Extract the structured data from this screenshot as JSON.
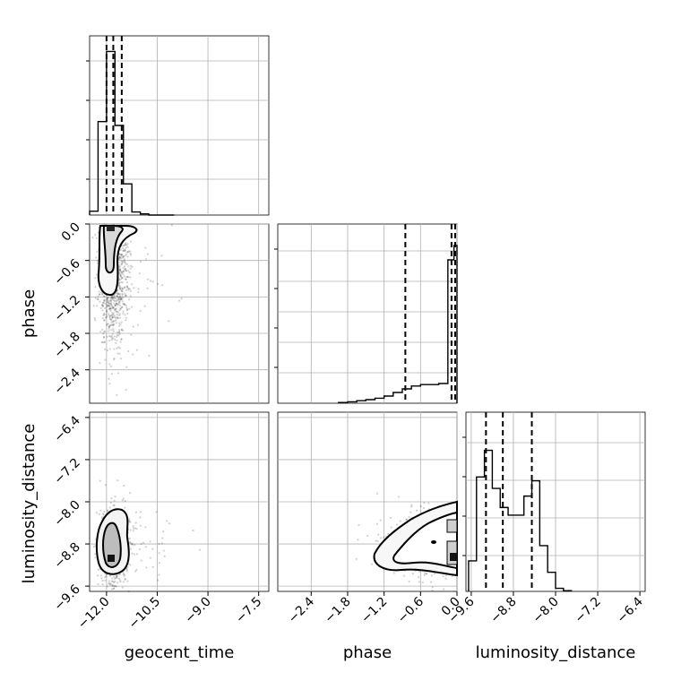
{
  "chart_data": {
    "type": "corner",
    "parameters": [
      "geocent_time",
      "phase",
      "luminosity_distance"
    ],
    "axes": {
      "geocent_time": {
        "label": "geocent_time",
        "lim": [
          -12.5,
          -7.2
        ],
        "ticks": [
          -12.0,
          -10.5,
          -9.0,
          -7.5
        ],
        "tick_labels": [
          "−12.0",
          "−10.5",
          "−9.0",
          "−7.5"
        ]
      },
      "phase": {
        "label": "phase",
        "lim": [
          -2.95,
          0.0
        ],
        "ticks": [
          -2.4,
          -1.8,
          -1.2,
          -0.6,
          0.0
        ],
        "tick_labels": [
          "−2.4",
          "−1.8",
          "−1.2",
          "−0.6",
          "0.0"
        ]
      },
      "luminosity_distance": {
        "label": "luminosity_distance",
        "lim": [
          -9.7,
          -6.3
        ],
        "ticks": [
          -9.6,
          -8.8,
          -8.0,
          -7.2,
          -6.4
        ],
        "tick_labels": [
          "−9.6",
          "−8.8",
          "−8.0",
          "−7.2",
          "−6.4"
        ]
      }
    },
    "histograms": {
      "geocent_time": {
        "edges": [
          -12.5,
          -12.25,
          -12.0,
          -11.75,
          -11.5,
          -11.25,
          -11.0,
          -10.75,
          -10.5,
          -10.25,
          -10.0
        ],
        "counts": [
          0.1,
          2.4,
          4.2,
          2.3,
          0.8,
          0.08,
          0.03,
          0.0,
          0.0,
          0.0
        ],
        "ymax": 4.6,
        "quantiles": [
          -12.0,
          -11.8,
          -11.55
        ]
      },
      "phase": {
        "edges": [
          -1.95,
          -1.8,
          -1.65,
          -1.5,
          -1.35,
          -1.2,
          -1.05,
          -0.9,
          -0.75,
          -0.6,
          -0.45,
          -0.3,
          -0.15,
          -0.05,
          0.0
        ],
        "counts": [
          0.02,
          0.04,
          0.07,
          0.1,
          0.14,
          0.2,
          0.3,
          0.4,
          0.48,
          0.52,
          0.52,
          0.55,
          4.0,
          4.4
        ],
        "ymax": 5.0,
        "quantiles": [
          -0.85,
          -0.09,
          -0.03
        ]
      },
      "luminosity_distance": {
        "edges": [
          -9.65,
          -9.5,
          -9.35,
          -9.2,
          -9.05,
          -8.9,
          -8.75,
          -8.6,
          -8.45,
          -8.3,
          -8.15,
          -8.0,
          -7.85,
          -7.7
        ],
        "counts": [
          0.8,
          3.0,
          3.7,
          2.7,
          2.2,
          2.0,
          2.0,
          2.5,
          2.9,
          1.2,
          0.5,
          0.08,
          0.02
        ],
        "ymax": 4.7,
        "quantiles": [
          -9.32,
          -9.0,
          -8.45
        ]
      }
    },
    "scatter_pairs": [
      {
        "x": "geocent_time",
        "y": "phase",
        "center": [
          -11.8,
          -0.9
        ],
        "spread": [
          0.22,
          0.55
        ],
        "tail": true
      },
      {
        "x": "geocent_time",
        "y": "luminosity_distance",
        "center": [
          -11.75,
          -8.85
        ],
        "spread": [
          0.22,
          0.35
        ],
        "tail": true
      },
      {
        "x": "phase",
        "y": "luminosity_distance",
        "center": [
          -0.25,
          -8.8
        ],
        "spread": [
          0.45,
          0.3
        ],
        "tail": false
      }
    ]
  }
}
